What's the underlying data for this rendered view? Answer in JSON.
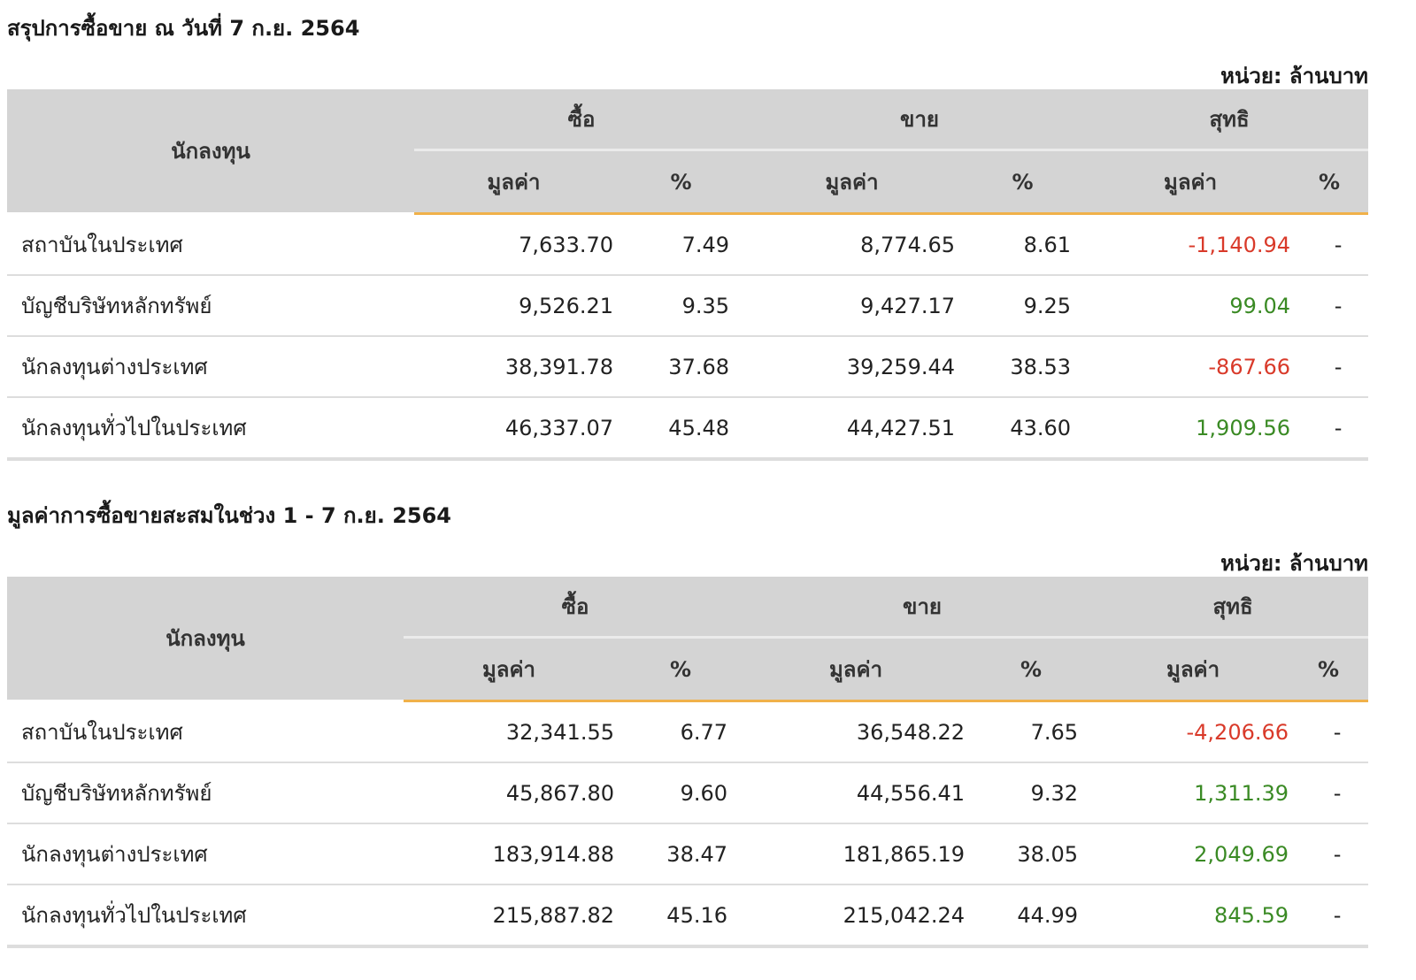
{
  "sections": [
    {
      "title": "สรุปการซื้อขาย ณ วันที่ 7 ก.ย. 2564",
      "unit": "หน่วย: ล้านบาท",
      "headers": {
        "investor": "นักลงทุน",
        "buy": "ซื้อ",
        "sell": "ขาย",
        "net": "สุทธิ",
        "value": "มูลค่า",
        "percent": "%"
      },
      "rows": [
        {
          "investor": "สถาบันในประเทศ",
          "buy_value": "7,633.70",
          "buy_pct": "7.49",
          "sell_value": "8,774.65",
          "sell_pct": "8.61",
          "net_value": "-1,140.94",
          "net_pct": "-",
          "net_status": "negative"
        },
        {
          "investor": "บัญชีบริษัทหลักทรัพย์",
          "buy_value": "9,526.21",
          "buy_pct": "9.35",
          "sell_value": "9,427.17",
          "sell_pct": "9.25",
          "net_value": "99.04",
          "net_pct": "-",
          "net_status": "positive"
        },
        {
          "investor": "นักลงทุนต่างประเทศ",
          "buy_value": "38,391.78",
          "buy_pct": "37.68",
          "sell_value": "39,259.44",
          "sell_pct": "38.53",
          "net_value": "-867.66",
          "net_pct": "-",
          "net_status": "negative"
        },
        {
          "investor": "นักลงทุนทั่วไปในประเทศ",
          "buy_value": "46,337.07",
          "buy_pct": "45.48",
          "sell_value": "44,427.51",
          "sell_pct": "43.60",
          "net_value": "1,909.56",
          "net_pct": "-",
          "net_status": "positive"
        }
      ]
    },
    {
      "title": "มูลค่าการซื้อขายสะสมในช่วง 1 - 7 ก.ย. 2564",
      "unit": "หน่วย: ล้านบาท",
      "headers": {
        "investor": "นักลงทุน",
        "buy": "ซื้อ",
        "sell": "ขาย",
        "net": "สุทธิ",
        "value": "มูลค่า",
        "percent": "%"
      },
      "rows": [
        {
          "investor": "สถาบันในประเทศ",
          "buy_value": "32,341.55",
          "buy_pct": "6.77",
          "sell_value": "36,548.22",
          "sell_pct": "7.65",
          "net_value": "-4,206.66",
          "net_pct": "-",
          "net_status": "negative"
        },
        {
          "investor": "บัญชีบริษัทหลักทรัพย์",
          "buy_value": "45,867.80",
          "buy_pct": "9.60",
          "sell_value": "44,556.41",
          "sell_pct": "9.32",
          "net_value": "1,311.39",
          "net_pct": "-",
          "net_status": "positive"
        },
        {
          "investor": "นักลงทุนต่างประเทศ",
          "buy_value": "183,914.88",
          "buy_pct": "38.47",
          "sell_value": "181,865.19",
          "sell_pct": "38.05",
          "net_value": "2,049.69",
          "net_pct": "-",
          "net_status": "positive"
        },
        {
          "investor": "นักลงทุนทั่วไปในประเทศ",
          "buy_value": "215,887.82",
          "buy_pct": "45.16",
          "sell_value": "215,042.24",
          "sell_pct": "44.99",
          "net_value": "845.59",
          "net_pct": "-",
          "net_status": "positive"
        }
      ]
    }
  ],
  "colors": {
    "header_bg": "#d4d4d4",
    "accent_underline": "#f0b14a",
    "negative": "#d93a2a",
    "positive": "#3a8a24",
    "row_divider": "#dddddd"
  }
}
